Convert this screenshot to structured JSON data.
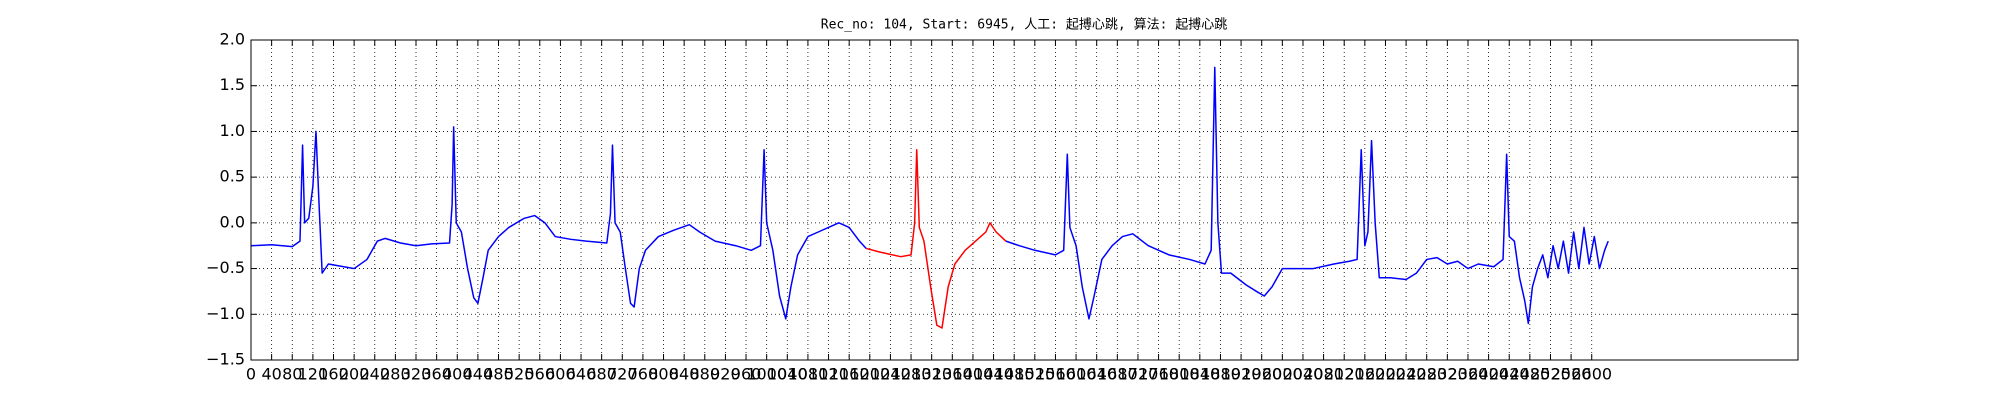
{
  "chart_data": {
    "type": "line",
    "title": "Rec_no: 104, Start: 6945, 人工: 起搏心跳, 算法: 起搏心跳",
    "xlim": [
      0,
      3000
    ],
    "ylim": [
      -1.5,
      2.0
    ],
    "xticks": [
      0,
      40,
      80,
      120,
      160,
      200,
      240,
      280,
      320,
      360,
      400,
      440,
      480,
      520,
      560,
      600,
      640,
      680,
      720,
      760,
      800,
      840,
      880,
      920,
      960,
      1000,
      1040,
      1080,
      1120,
      1160,
      1200,
      1240,
      1280,
      1320,
      1360,
      1400,
      1440,
      1480,
      1520,
      1560,
      1600,
      1640,
      1680,
      1720,
      1760,
      1800,
      1840,
      1880,
      1920,
      1960,
      2000,
      2040,
      2080,
      2120,
      2160,
      2200,
      2240,
      2280,
      2320,
      2360,
      2400,
      2440,
      2480,
      2520,
      2560,
      2600
    ],
    "yticks": [
      {
        "value": -1.5,
        "label": "−1.5"
      },
      {
        "value": -1,
        "label": "−1.0"
      },
      {
        "value": -0.5,
        "label": "−0.5"
      },
      {
        "value": 0,
        "label": "0.0"
      },
      0.5,
      {
        "value": 1,
        "label": "1.0"
      },
      1.5,
      {
        "value": 2,
        "label": "2.0"
      }
    ],
    "grid": true,
    "series": [
      {
        "color": "#0000ff",
        "x": [
          0,
          40,
          80,
          95,
          100,
          104,
          112,
          120,
          126,
          132,
          138,
          150,
          180,
          200,
          225,
          245,
          260,
          290,
          320,
          350,
          385,
          390,
          393,
          398,
          408,
          420,
          432,
          440,
          450,
          460,
          480,
          500,
          530,
          550,
          570,
          590,
          620,
          650,
          690,
          697,
          701,
          706,
          716,
          726,
          736,
          743,
          753,
          765,
          790,
          820,
          850,
          870,
          900,
          940,
          970,
          988,
          995,
          1000,
          1012,
          1025,
          1037,
          1047,
          1060,
          1080,
          1100,
          1140,
          1160,
          1180,
          1193
        ],
        "values": [
          -0.25,
          -0.24,
          -0.26,
          -0.2,
          0.85,
          0.0,
          0.05,
          0.4,
          1.0,
          0.2,
          -0.55,
          -0.45,
          -0.48,
          -0.5,
          -0.4,
          -0.2,
          -0.17,
          -0.22,
          -0.25,
          -0.23,
          -0.22,
          0.2,
          1.05,
          0.0,
          -0.1,
          -0.5,
          -0.82,
          -0.88,
          -0.6,
          -0.3,
          -0.15,
          -0.05,
          0.05,
          0.08,
          0.0,
          -0.15,
          -0.18,
          -0.2,
          -0.22,
          0.1,
          0.85,
          0.0,
          -0.1,
          -0.5,
          -0.88,
          -0.92,
          -0.5,
          -0.3,
          -0.15,
          -0.08,
          -0.02,
          -0.1,
          -0.2,
          -0.25,
          -0.3,
          -0.25,
          0.8,
          0.0,
          -0.3,
          -0.8,
          -1.05,
          -0.7,
          -0.35,
          -0.15,
          -0.1,
          0.0,
          -0.05,
          -0.2,
          -0.28
        ]
      },
      {
        "color": "#ff0000",
        "x": [
          1193,
          1220,
          1260,
          1280,
          1287,
          1291,
          1296,
          1305,
          1318,
          1330,
          1340,
          1352,
          1365,
          1385,
          1405,
          1425,
          1433,
          1445,
          1464
        ],
        "values": [
          -0.28,
          -0.32,
          -0.37,
          -0.35,
          0.0,
          0.8,
          -0.05,
          -0.2,
          -0.7,
          -1.12,
          -1.15,
          -0.7,
          -0.45,
          -0.3,
          -0.2,
          -0.1,
          0.0,
          -0.1,
          -0.2
        ]
      },
      {
        "color": "#0000ff",
        "x": [
          1464,
          1490,
          1520,
          1560,
          1576,
          1583,
          1588,
          1600,
          1612,
          1625,
          1635,
          1650,
          1670,
          1690,
          1710,
          1740,
          1780,
          1820,
          1850,
          1862,
          1869,
          1875,
          1882,
          1900,
          1930,
          1950,
          1965,
          1980,
          2000,
          2030,
          2060,
          2100,
          2130,
          2145,
          2153,
          2160,
          2166,
          2173,
          2180,
          2188,
          2210,
          2240,
          2260,
          2280,
          2300,
          2320,
          2340,
          2360,
          2380,
          2410,
          2428,
          2435,
          2440,
          2450,
          2460,
          2470,
          2477,
          2485,
          2495,
          2505,
          2515,
          2525,
          2535,
          2545,
          2555,
          2565,
          2575,
          2585,
          2595,
          2605,
          2615,
          2625,
          2632
        ],
        "values": [
          -0.2,
          -0.25,
          -0.3,
          -0.35,
          -0.3,
          0.75,
          -0.05,
          -0.25,
          -0.7,
          -1.05,
          -0.8,
          -0.4,
          -0.25,
          -0.15,
          -0.12,
          -0.25,
          -0.35,
          -0.4,
          -0.45,
          -0.3,
          1.7,
          0.0,
          -0.55,
          -0.55,
          -0.68,
          -0.75,
          -0.8,
          -0.7,
          -0.5,
          -0.5,
          -0.5,
          -0.45,
          -0.42,
          -0.4,
          0.8,
          -0.25,
          -0.1,
          0.9,
          0.0,
          -0.6,
          -0.6,
          -0.62,
          -0.55,
          -0.4,
          -0.38,
          -0.45,
          -0.42,
          -0.5,
          -0.45,
          -0.48,
          -0.4,
          0.75,
          -0.15,
          -0.2,
          -0.6,
          -0.85,
          -1.1,
          -0.7,
          -0.5,
          -0.35,
          -0.6,
          -0.25,
          -0.5,
          -0.2,
          -0.55,
          -0.1,
          -0.5,
          -0.05,
          -0.45,
          -0.15,
          -0.5,
          -0.3,
          -0.2
        ]
      }
    ]
  }
}
